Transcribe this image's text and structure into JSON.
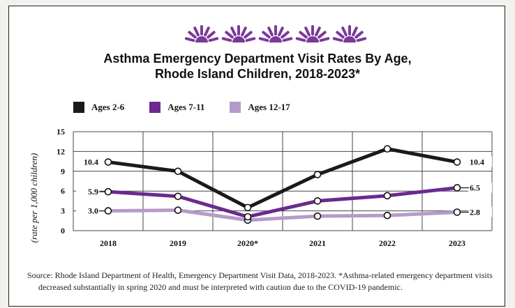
{
  "chart_data": {
    "type": "line",
    "title": "Asthma Emergency Department Visit Rates By Age,",
    "subtitle": "Rhode Island Children, 2018-2023*",
    "ylabel": "(rate per 1,000 children)",
    "xlabel": "",
    "x": [
      "2018",
      "2019",
      "2020*",
      "2021",
      "2022",
      "2023"
    ],
    "ylim": [
      0,
      15
    ],
    "yticks": [
      0,
      3,
      6,
      9,
      12,
      15
    ],
    "grid": true,
    "legend_position": "top-left",
    "series": [
      {
        "name": "Ages 2-6",
        "color": "#1a1a1a",
        "values": [
          10.4,
          9.0,
          3.5,
          8.5,
          12.4,
          10.4
        ]
      },
      {
        "name": "Ages 7-11",
        "color": "#6a2a8e",
        "values": [
          5.9,
          5.2,
          2.1,
          4.5,
          5.3,
          6.5
        ]
      },
      {
        "name": "Ages 12-17",
        "color": "#b69ac9",
        "values": [
          3.0,
          3.1,
          1.6,
          2.2,
          2.3,
          2.8
        ]
      }
    ],
    "data_labels": [
      {
        "series": 0,
        "index": 0,
        "text": "10.4",
        "side": "left"
      },
      {
        "series": 0,
        "index": 5,
        "text": "10.4",
        "side": "right"
      },
      {
        "series": 1,
        "index": 0,
        "text": "5.9",
        "side": "left"
      },
      {
        "series": 1,
        "index": 5,
        "text": "6.5",
        "side": "right"
      },
      {
        "series": 2,
        "index": 0,
        "text": "3.0",
        "side": "left"
      },
      {
        "series": 2,
        "index": 5,
        "text": "2.8",
        "side": "right"
      }
    ]
  },
  "source_note": "Source: Rhode Island Department of Health, Emergency Department Visit Data, 2018-2023. *Asthma-related emergency department visits decreased substantially in spring 2020 and must be interpreted with caution due to the COVID-19 pandemic.",
  "decoration": {
    "icon": "sun-icon",
    "count": 5,
    "color": "#7b3a9a"
  }
}
